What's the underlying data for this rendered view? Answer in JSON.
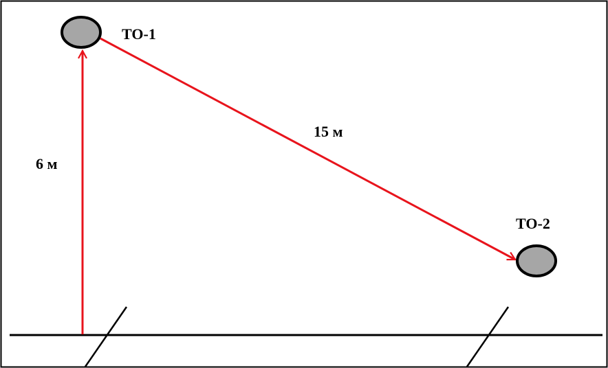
{
  "nodes": {
    "to1": {
      "label": "ТО-1"
    },
    "to2": {
      "label": "ТО-2"
    }
  },
  "measurements": {
    "height_label": "6 м",
    "distance_label": "15 м"
  },
  "colors": {
    "arrow": "#e8141c",
    "node_fill": "#a6a6a6",
    "outline": "#000000"
  }
}
